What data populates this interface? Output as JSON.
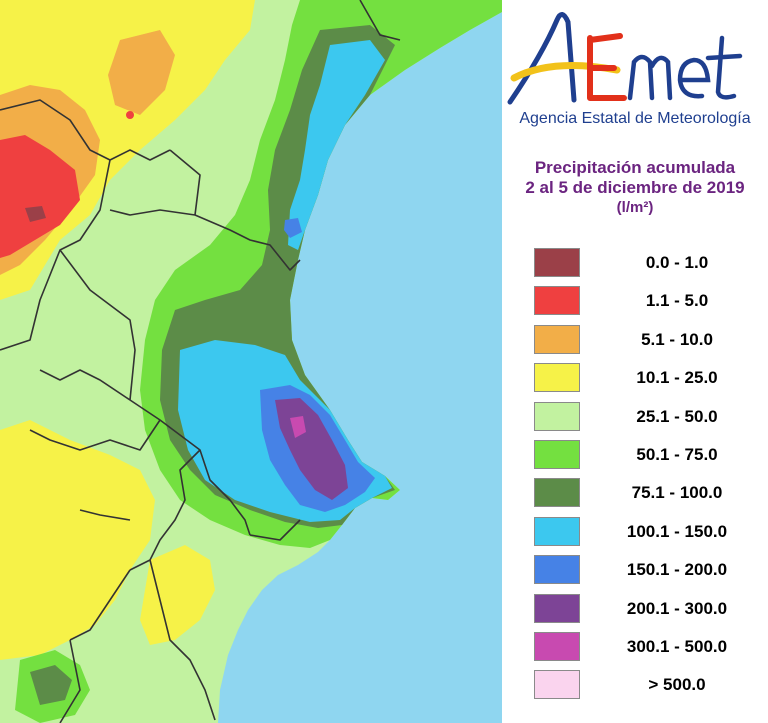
{
  "logo": {
    "text": "AEmet",
    "agency": "Agencia Estatal de Meteorología"
  },
  "title": {
    "line1": "Precipitación acumulada",
    "line2": "2 al 5 de diciembre de 2019",
    "unit": "(l/m²)"
  },
  "colors": {
    "sea": "#8fd6f0",
    "title": "#6b2480",
    "agency": "#1f3f8f"
  },
  "legend": [
    {
      "label": "0.0 - 1.0",
      "color": "#9b4048"
    },
    {
      "label": "1.1 - 5.0",
      "color": "#ef4040"
    },
    {
      "label": "5.1 - 10.0",
      "color": "#f2ae48"
    },
    {
      "label": "10.1 - 25.0",
      "color": "#f6f248"
    },
    {
      "label": "25.1 - 50.0",
      "color": "#c2f2a0"
    },
    {
      "label": "50.1 - 75.0",
      "color": "#74e040"
    },
    {
      "label": "75.1 - 100.0",
      "color": "#5c8c48"
    },
    {
      "label": "100.1 - 150.0",
      "color": "#3cc8ef"
    },
    {
      "label": "150.1 - 200.0",
      "color": "#4682e6"
    },
    {
      "label": "200.1 - 300.0",
      "color": "#7d4496"
    },
    {
      "label": "300.1 - 500.0",
      "color": "#c84ab0"
    },
    {
      "label": "> 500.0",
      "color": "#fad4ee"
    }
  ]
}
